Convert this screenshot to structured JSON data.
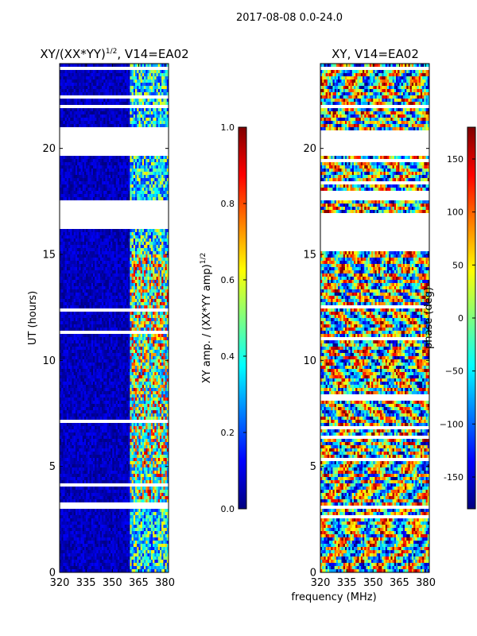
{
  "figure": {
    "suptitle": "2017-08-08 0.0-24.0",
    "xlabel": "frequency (MHz)"
  },
  "colors": {
    "jet": [
      "#00007f",
      "#0000ff",
      "#007fff",
      "#00ffff",
      "#7fff7f",
      "#ffff00",
      "#ff7f00",
      "#ff0000",
      "#7f0000"
    ],
    "frame": "#000000",
    "gap": "#ffffff"
  },
  "chart_data": [
    {
      "type": "heatmap",
      "title_main": "XY/(XX*YY)",
      "title_exp": "1/2",
      "title_tail": ", V14=EA02",
      "xlabel": "",
      "ylabel": "UT (hours)",
      "xlim": [
        320,
        382
      ],
      "ylim": [
        0,
        24
      ],
      "xticks": [
        320,
        335,
        350,
        365,
        380
      ],
      "xtick_labels": [
        "320",
        "335",
        "350",
        "365",
        "380"
      ],
      "yticks": [
        0,
        5,
        10,
        15,
        20
      ],
      "ytick_labels": [
        "0",
        "5",
        "10",
        "15",
        "20"
      ],
      "description": "Low normalized XY amplitude (~0.02-0.1) below ~360 MHz; elevated and variable amplitude (~0.3-0.9) between ~360 and ~380 MHz.",
      "low_band_mhz": [
        320,
        360
      ],
      "low_band_value_range": [
        0.0,
        0.12
      ],
      "high_band_mhz": [
        360,
        380
      ],
      "high_band_value_range": [
        0.2,
        0.95
      ],
      "data_gaps_hours": [
        [
          16.2,
          17.5
        ],
        [
          19.6,
          21.0
        ],
        [
          21.85,
          22.05
        ],
        [
          22.4,
          22.55
        ]
      ],
      "colorbar": {
        "label_main": "XY amp. / (XX*YY amp)",
        "label_exp": "1/2",
        "range": [
          0.0,
          1.0
        ],
        "ticks": [
          0.0,
          0.2,
          0.4,
          0.6,
          0.8,
          1.0
        ],
        "tick_labels": [
          "0.0",
          "0.2",
          "0.4",
          "0.6",
          "0.8",
          "1.0"
        ]
      }
    },
    {
      "type": "heatmap",
      "title_main": "XY, V14=EA02",
      "xlabel": "frequency (MHz)",
      "ylabel": "",
      "xlim": [
        320,
        382
      ],
      "ylim": [
        0,
        24
      ],
      "xticks": [
        320,
        335,
        350,
        365,
        380
      ],
      "xtick_labels": [
        "320",
        "335",
        "350",
        "365",
        "380"
      ],
      "yticks": [
        0,
        5,
        10,
        15,
        20
      ],
      "ytick_labels": [
        "0",
        "5",
        "10",
        "15",
        "20"
      ],
      "description": "XY phase in degrees, spanning the full -180 to 180 range with banded, noisy structure across all frequencies.",
      "value_range": [
        -180,
        180
      ],
      "data_gaps_hours": [
        [
          15.2,
          17.0
        ],
        [
          17.6,
          18.0
        ],
        [
          19.7,
          20.9
        ]
      ],
      "colorbar": {
        "label_main": "phase (deg)",
        "range": [
          -180,
          180
        ],
        "ticks": [
          -150,
          -100,
          -50,
          0,
          50,
          100,
          150
        ],
        "tick_labels": [
          "-150",
          "−100",
          "−50",
          "0",
          "50",
          "100",
          "150"
        ]
      }
    }
  ]
}
